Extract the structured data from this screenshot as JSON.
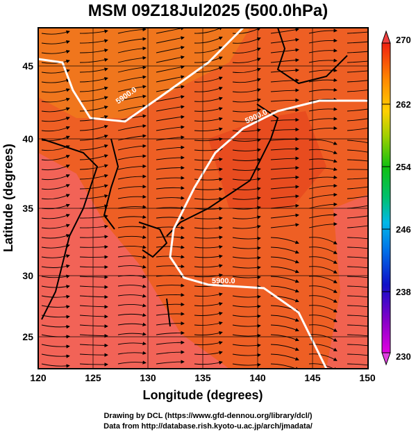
{
  "title": "MSM 09Z18Jul2025 (500.0hPa)",
  "map": {
    "x_ticks": [
      "120",
      "125",
      "130",
      "135",
      "140",
      "145",
      "150"
    ],
    "y_ticks": [
      "25",
      "30",
      "35",
      "40",
      "45"
    ],
    "xlabel": "Longitude (degrees)",
    "ylabel": "Latitude  (degrees)",
    "contour_label": "5900.0",
    "contour_level": 5900.0
  },
  "colorbar": {
    "ticks": [
      "230",
      "238",
      "246",
      "254",
      "262",
      "270"
    ],
    "range": [
      230,
      270
    ]
  },
  "footer": {
    "line1": "Drawing by DCL (https://www.gfd-dennou.org/library/dcl/)",
    "line2": "Data from http://database.rish.kyoto-u.ac.jp/arch/jmadata/"
  },
  "colors": {
    "warm_fill": "#f05a1e",
    "hot_fill": "#f06060",
    "contour": "#ffffff",
    "streamline": "#000000"
  }
}
